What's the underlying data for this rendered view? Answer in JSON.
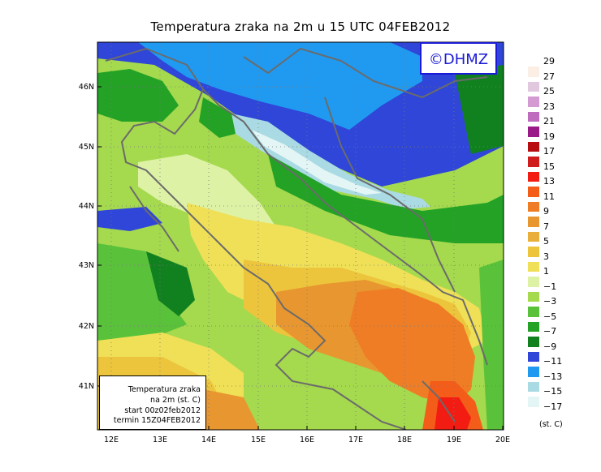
{
  "title": "Temperatura zraka na 2m u 15 UTC 04FEB2012",
  "copyright": "©DHMZ",
  "info_box": {
    "line1": "Temperatura zraka",
    "line2": "na 2m (st. C)",
    "line3": "start 00z02feb2012",
    "line4": "termin 15Z04FEB2012"
  },
  "lat_labels": [
    "46N",
    "45N",
    "44N",
    "43N",
    "42N",
    "41N"
  ],
  "lon_labels": [
    "12E",
    "13E",
    "14E",
    "15E",
    "16E",
    "17E",
    "18E",
    "19E",
    "20E"
  ],
  "legend": {
    "unit": "(st. C)",
    "levels": [
      "29",
      "27",
      "25",
      "23",
      "21",
      "19",
      "17",
      "15",
      "13",
      "11",
      "9",
      "7",
      "5",
      "3",
      "1",
      "−1",
      "−3",
      "−5",
      "−7",
      "−9",
      "−11",
      "−13",
      "−15",
      "−17"
    ],
    "colors": [
      "#fbeee4",
      "#e2c8df",
      "#d49bd2",
      "#c06cbe",
      "#9a1a88",
      "#b80d10",
      "#cf1d1d",
      "#f21c12",
      "#f45c1a",
      "#ee7d25",
      "#e8962f",
      "#eaaf3a",
      "#ecc53c",
      "#efe057",
      "#def2a6",
      "#a5d94e",
      "#59c23a",
      "#23a226",
      "#11801f",
      "#2f46d8",
      "#1f9af0",
      "#aadae3",
      "#e3f6f5"
    ]
  },
  "map_colors": {
    "below_minus_9": "#2f46d8",
    "minus_11_to_minus_9": "#1f9af0",
    "minus_13_to_minus_11": "#aadae3",
    "minus_15_to_minus_13": "#e3f6f5",
    "minus_7_to_minus_5": "#11801f",
    "minus_5_to_minus_3": "#23a226",
    "minus_3_to_minus_1": "#59c23a",
    "minus_1_to_1": "#a5d94e",
    "1_to_3": "#def2a6",
    "3_to_5": "#efe057",
    "5_to_7": "#ecc53c",
    "7_to_9": "#e8962f",
    "9_to_11": "#ee7d25",
    "11_to_13": "#f45c1a",
    "13_to_15": "#f21c12"
  }
}
